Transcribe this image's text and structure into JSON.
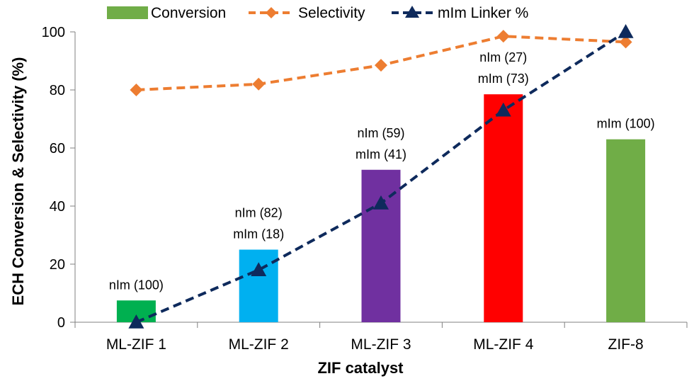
{
  "chart_data": {
    "type": "bar",
    "title": "",
    "xlabel": "ZIF catalyst",
    "ylabel": "ECH Conversion & Selectivity (%)",
    "ylim": [
      0,
      100
    ],
    "yticks": [
      0,
      20,
      40,
      60,
      80,
      100
    ],
    "grid": false,
    "legend_position": "top",
    "categories": [
      "ML-ZIF 1",
      "ML-ZIF 2",
      "ML-ZIF 3",
      "ML-ZIF 4",
      "ZIF-8"
    ],
    "series": [
      {
        "name": "Conversion",
        "kind": "bar",
        "values": [
          7.5,
          25,
          52.5,
          78.5,
          63
        ],
        "bar_colors": [
          "#00b050",
          "#00b0f0",
          "#7030a0",
          "#ff0000",
          "#70ad47"
        ],
        "legend_color": "#70ad47"
      },
      {
        "name": "Selectivity",
        "kind": "line",
        "line_style": "dashed",
        "marker": "diamond",
        "color": "#ed7d31",
        "values": [
          80,
          82,
          88.5,
          98.5,
          96.5
        ]
      },
      {
        "name": "mIm Linker %",
        "kind": "line",
        "line_style": "dashed",
        "marker": "triangle",
        "color": "#0e2a5c",
        "values": [
          0,
          18,
          41,
          73,
          100
        ]
      }
    ],
    "bar_annotations": [
      [
        "nIm (100)"
      ],
      [
        "nIm (82)",
        "mIm (18)"
      ],
      [
        "nIm (59)",
        "mIm (41)"
      ],
      [
        "nIm (27)",
        "mIm (73)"
      ],
      [
        "mIm (100)"
      ]
    ]
  }
}
